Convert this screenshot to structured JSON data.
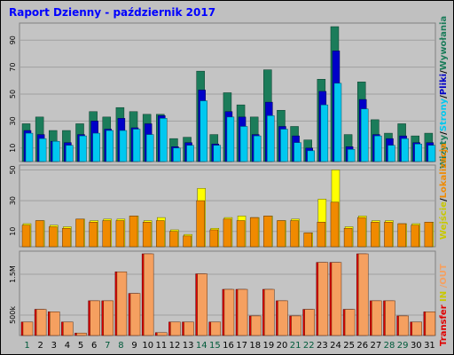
{
  "title": "Raport Dzienny -  październik 2017",
  "colors": {
    "title": "#0000ff",
    "frame_bg": "#c0c0c0",
    "panel_bg": "#c4c4c4",
    "grid": "#a0a0a0",
    "weekday": "#000000",
    "weekend": "#005a3a",
    "visits": "#1b7c5a",
    "sites": "#0000c8",
    "files": "#00c8f0",
    "pages": "#ffff00",
    "hits_panel2": "#f08a00",
    "kbytes_out": "#f5a060",
    "kbytes_in": "#e00000"
  },
  "legend_right_1": [
    {
      "text": "Wizyty",
      "color": "#1b7c5a"
    },
    {
      "text": "/",
      "color": "#000000"
    },
    {
      "text": "Strony",
      "color": "#00c8f0"
    },
    {
      "text": "/",
      "color": "#000000"
    },
    {
      "text": "Pliki",
      "color": "#0000c8"
    },
    {
      "text": "/",
      "color": "#000000"
    },
    {
      "text": "Wywołania",
      "color": "#1b7c5a"
    }
  ],
  "legend_right_2": [
    {
      "text": "Wejście",
      "color": "#c8c800"
    },
    {
      "text": "/",
      "color": "#000000"
    },
    {
      "text": "Lokalizacja",
      "color": "#f08a00"
    }
  ],
  "legend_right_3": [
    {
      "text": "Transfer",
      "color": "#e00000"
    },
    {
      "text": " IN ",
      "color": "#c8c800"
    },
    {
      "text": "/OUT",
      "color": "#f5a060"
    }
  ],
  "chart_data": [
    {
      "type": "bar",
      "panel": "top",
      "ylim": [
        0,
        100
      ],
      "yticks": [
        10,
        30,
        50,
        70,
        90
      ],
      "categories": [
        "1",
        "2",
        "3",
        "4",
        "5",
        "6",
        "7",
        "8",
        "9",
        "10",
        "11",
        "12",
        "13",
        "14",
        "15",
        "16",
        "17",
        "18",
        "19",
        "20",
        "21",
        "22",
        "23",
        "24",
        "25",
        "26",
        "27",
        "28",
        "29",
        "30",
        "31"
      ],
      "weekend_days": [
        1,
        7,
        8,
        14,
        15,
        21,
        22,
        28,
        29
      ],
      "series": [
        {
          "name": "Wywołania",
          "values": [
            28,
            33,
            23,
            23,
            28,
            37,
            33,
            40,
            37,
            35,
            35,
            17,
            18,
            67,
            20,
            51,
            42,
            33,
            68,
            38,
            26,
            16,
            61,
            100,
            20,
            59,
            31,
            21,
            28,
            19,
            21
          ]
        },
        {
          "name": "Pliki",
          "values": [
            23,
            20,
            15,
            14,
            20,
            30,
            24,
            32,
            25,
            28,
            34,
            11,
            14,
            53,
            13,
            37,
            33,
            20,
            44,
            26,
            19,
            10,
            52,
            82,
            11,
            46,
            20,
            17,
            19,
            14,
            14
          ]
        },
        {
          "name": "Strony",
          "values": [
            21,
            17,
            15,
            12,
            19,
            21,
            23,
            23,
            24,
            20,
            32,
            10,
            12,
            45,
            12,
            33,
            26,
            19,
            34,
            24,
            14,
            8,
            42,
            58,
            9,
            39,
            19,
            12,
            17,
            13,
            12
          ]
        }
      ]
    },
    {
      "type": "bar",
      "panel": "middle",
      "ylim": [
        0,
        52
      ],
      "yticks": [
        10,
        30,
        50
      ],
      "categories": [
        "1",
        "2",
        "3",
        "4",
        "5",
        "6",
        "7",
        "8",
        "9",
        "10",
        "11",
        "12",
        "13",
        "14",
        "15",
        "16",
        "17",
        "18",
        "19",
        "20",
        "21",
        "22",
        "23",
        "24",
        "25",
        "26",
        "27",
        "28",
        "29",
        "30",
        "31"
      ],
      "series": [
        {
          "name": "Wejście",
          "values": [
            15,
            17,
            14,
            13,
            18,
            17,
            18,
            18,
            20,
            17,
            19,
            11,
            8,
            38,
            12,
            19,
            20,
            19,
            20,
            17,
            18,
            9,
            31,
            50,
            13,
            20,
            17,
            17,
            15,
            15,
            16
          ]
        },
        {
          "name": "Lokalizacja",
          "values": [
            14,
            17,
            13,
            12,
            18,
            16,
            17,
            17,
            20,
            16,
            17,
            10,
            7,
            30,
            11,
            18,
            17,
            19,
            20,
            17,
            17,
            9,
            16,
            29,
            12,
            19,
            16,
            16,
            15,
            14,
            16
          ]
        }
      ]
    },
    {
      "type": "bar",
      "panel": "bottom",
      "ylim": [
        0,
        2000
      ],
      "yticks": [
        "500k",
        "1.5M"
      ],
      "categories": [
        "1",
        "2",
        "3",
        "4",
        "5",
        "6",
        "7",
        "8",
        "9",
        "10",
        "11",
        "12",
        "13",
        "14",
        "15",
        "16",
        "17",
        "18",
        "19",
        "20",
        "21",
        "22",
        "23",
        "24",
        "25",
        "26",
        "27",
        "28",
        "29",
        "30",
        "31"
      ],
      "series": [
        {
          "name": "IN",
          "values": [
            330,
            640,
            580,
            330,
            60,
            850,
            850,
            1560,
            1030,
            2000,
            70,
            330,
            330,
            1510,
            330,
            1130,
            1130,
            480,
            1130,
            850,
            480,
            640,
            1790,
            1790,
            640,
            2000,
            850,
            850,
            480,
            330,
            580
          ]
        },
        {
          "name": "OUT",
          "values": [
            330,
            640,
            580,
            330,
            60,
            850,
            850,
            1560,
            1030,
            2000,
            70,
            330,
            330,
            1510,
            330,
            1130,
            1130,
            480,
            1130,
            850,
            480,
            640,
            1790,
            1790,
            640,
            2000,
            850,
            850,
            480,
            330,
            580
          ]
        }
      ]
    }
  ]
}
